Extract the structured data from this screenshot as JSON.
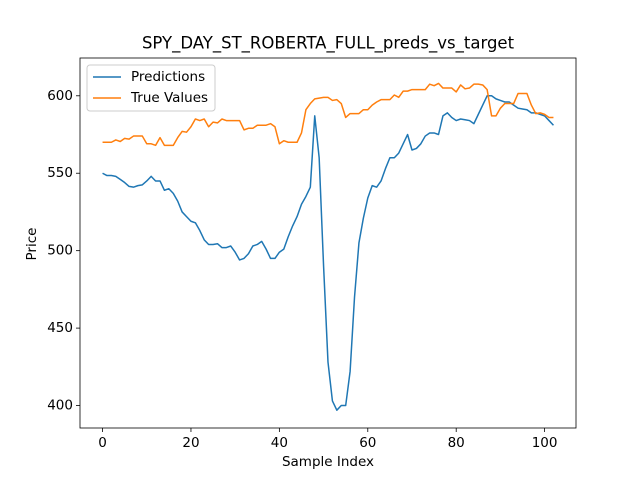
{
  "chart_data": {
    "type": "line",
    "title": "SPY_DAY_ST_ROBERTA_FULL_preds_vs_target",
    "x_label": "Sample Index",
    "y_label": "Price",
    "x": [
      0,
      1,
      2,
      3,
      4,
      5,
      6,
      7,
      8,
      9,
      10,
      11,
      12,
      13,
      14,
      15,
      16,
      17,
      18,
      19,
      20,
      21,
      22,
      23,
      24,
      25,
      26,
      27,
      28,
      29,
      30,
      31,
      32,
      33,
      34,
      35,
      36,
      37,
      38,
      39,
      40,
      41,
      42,
      43,
      44,
      45,
      46,
      47,
      48,
      49,
      50,
      51,
      52,
      53,
      54,
      55,
      56,
      57,
      58,
      59,
      60,
      61,
      62,
      63,
      64,
      65,
      66,
      67,
      68,
      69,
      70,
      71,
      72,
      73,
      74,
      75,
      76,
      77,
      78,
      79,
      80,
      81,
      82,
      83,
      84,
      85,
      86,
      87,
      88,
      89,
      90,
      91,
      92,
      93,
      94,
      95,
      96,
      97,
      98,
      99,
      100,
      101,
      102
    ],
    "series": [
      {
        "name": "Predictions",
        "color": "#1f77b4",
        "values": [
          550,
          548.5,
          548.5,
          548,
          546,
          544,
          541.5,
          541,
          542,
          542.5,
          545,
          548,
          545,
          545,
          539,
          540,
          537,
          532,
          525,
          522,
          519,
          518,
          513,
          507,
          504,
          504,
          504.5,
          502,
          502,
          503,
          499,
          494,
          495,
          498,
          503,
          504,
          506,
          501,
          495,
          495,
          499,
          501,
          509,
          516,
          522,
          530,
          535,
          541,
          587,
          560,
          490,
          428,
          403,
          397,
          400,
          400,
          422,
          470,
          505,
          521,
          534,
          542,
          541,
          545,
          553,
          560,
          560,
          563,
          569,
          575,
          565,
          566,
          569,
          574,
          576,
          576,
          575,
          587,
          589,
          586,
          584,
          585,
          584.5,
          584,
          582,
          588,
          594,
          600,
          600,
          598,
          597,
          596,
          596,
          594,
          592,
          591.5,
          591,
          589,
          589,
          588,
          587,
          584,
          581
        ]
      },
      {
        "name": "True Values",
        "color": "#ff7f0e",
        "values": [
          570,
          570,
          570,
          571.5,
          570.5,
          572.5,
          572,
          574,
          574,
          574,
          569,
          569,
          568,
          573,
          568,
          568,
          568,
          573,
          577,
          576.5,
          580,
          585,
          584,
          585,
          580,
          583,
          582.5,
          585,
          584,
          584,
          584,
          584,
          578,
          579,
          579,
          581,
          581,
          581,
          582,
          580,
          569,
          571,
          570,
          570,
          570,
          576,
          591,
          595,
          598,
          598.5,
          599,
          599,
          597,
          597.5,
          595,
          586,
          588.5,
          588.5,
          588.5,
          591,
          591,
          594,
          596,
          597.5,
          597.5,
          597.5,
          600.5,
          599,
          603,
          603,
          604,
          604,
          604,
          604,
          607.5,
          606.5,
          608,
          605,
          605,
          605,
          602.5,
          607,
          604.5,
          605,
          607.5,
          607.5,
          607,
          604,
          587,
          587,
          592,
          595,
          595,
          595,
          601.5,
          601.5,
          601.5,
          594,
          588.5,
          589,
          588,
          586,
          586
        ]
      }
    ],
    "xlim": [
      -5.1,
      107.1
    ],
    "ylim": [
      385.5,
      624.4
    ],
    "xticks": [
      0,
      20,
      40,
      60,
      80,
      100
    ],
    "yticks": [
      400,
      450,
      500,
      550,
      600
    ],
    "legend": "upper left",
    "grid": false
  }
}
